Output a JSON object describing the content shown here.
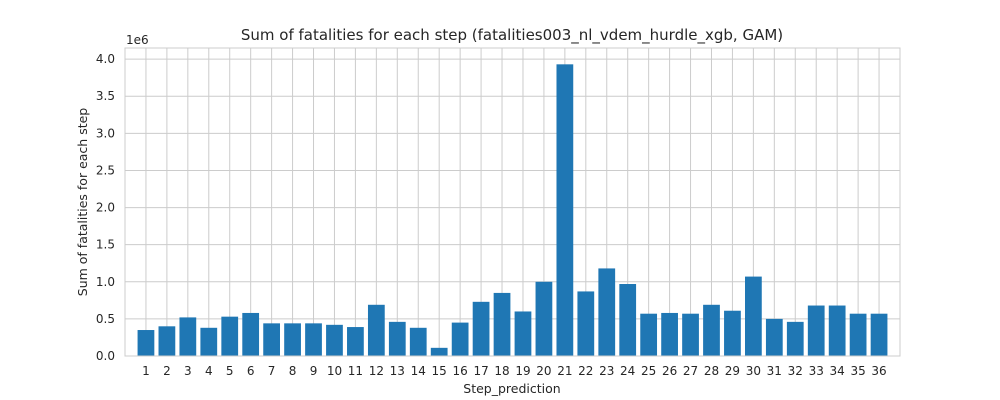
{
  "chart_data": {
    "type": "bar",
    "title": "Sum of fatalities for each step (fatalities003_nl_vdem_hurdle_xgb, GAM)",
    "xlabel": "Step_prediction",
    "ylabel": "Sum of fatalities for each step",
    "y_offset_text": "1e6",
    "y_scale": 1000000,
    "ylim": [
      0,
      4.15
    ],
    "yticks": [
      0.0,
      0.5,
      1.0,
      1.5,
      2.0,
      2.5,
      3.0,
      3.5,
      4.0
    ],
    "ytick_labels": [
      "0.0",
      "0.5",
      "1.0",
      "1.5",
      "2.0",
      "2.5",
      "3.0",
      "3.5",
      "4.0"
    ],
    "grid": true,
    "bar_color": "#1f77b4",
    "categories": [
      "1",
      "2",
      "3",
      "4",
      "5",
      "6",
      "7",
      "8",
      "9",
      "10",
      "11",
      "12",
      "13",
      "14",
      "15",
      "16",
      "17",
      "18",
      "19",
      "20",
      "21",
      "22",
      "23",
      "24",
      "25",
      "26",
      "27",
      "28",
      "29",
      "30",
      "31",
      "32",
      "33",
      "34",
      "35",
      "36"
    ],
    "values": [
      0.35,
      0.4,
      0.52,
      0.38,
      0.53,
      0.58,
      0.44,
      0.44,
      0.44,
      0.42,
      0.39,
      0.69,
      0.46,
      0.38,
      0.11,
      0.45,
      0.73,
      0.85,
      0.6,
      1.0,
      3.93,
      0.87,
      1.18,
      0.97,
      0.57,
      0.58,
      0.57,
      0.69,
      0.61,
      1.07,
      0.5,
      0.46,
      0.68,
      0.68,
      0.57,
      0.57
    ]
  }
}
